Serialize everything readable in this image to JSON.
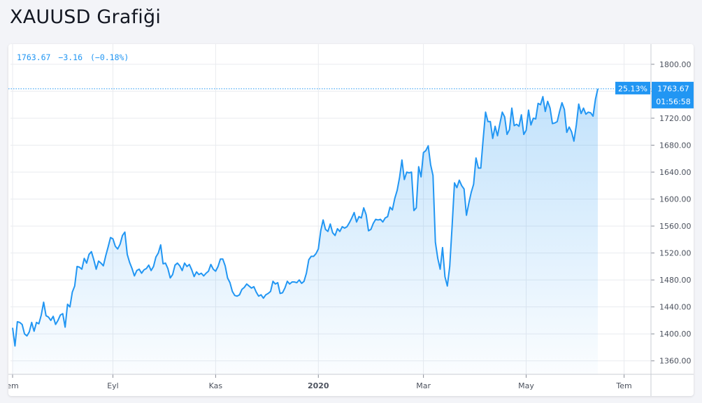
{
  "page": {
    "title": "XAUUSD Grafiği"
  },
  "legend": {
    "last": "1763.67",
    "change": "−3.16",
    "change_pct": "(−0.18%)"
  },
  "badges": {
    "percent": "25.13%",
    "price": "1763.67",
    "countdown": "01:56:58"
  },
  "colors": {
    "line": "#2196f3",
    "fill": "#2196f3",
    "grid": "#e9ebef",
    "axis_text": "#4c525e"
  },
  "chart_data": {
    "type": "area",
    "title": "XAUUSD Grafiği",
    "xlabel": "",
    "ylabel": "",
    "ylim": [
      1340,
      1830
    ],
    "y_ticks": [
      1360,
      1400,
      1440,
      1480,
      1520,
      1560,
      1600,
      1640,
      1680,
      1720,
      1760,
      1800
    ],
    "y_tick_labels": [
      "1360.00",
      "1400.00",
      "1440.00",
      "1480.00",
      "1520.00",
      "1560.00",
      "1600.00",
      "1640.00",
      "1680.00",
      "1720.00",
      "1760.00",
      "1800.00"
    ],
    "x_ticks": [
      {
        "label": "em",
        "index": 0,
        "bold": false
      },
      {
        "label": "Eyl",
        "index": 42,
        "bold": false
      },
      {
        "label": "Kas",
        "index": 85,
        "bold": false
      },
      {
        "label": "2020",
        "index": 128,
        "bold": true
      },
      {
        "label": "Mar",
        "index": 172,
        "bold": false
      },
      {
        "label": "May",
        "index": 215,
        "bold": false
      },
      {
        "label": "Tem",
        "index": 256,
        "bold": false
      }
    ],
    "x_total": 258,
    "grid": true,
    "last_value": 1763.67,
    "series": [
      {
        "values": [
          1409,
          1382,
          1418,
          1417,
          1414,
          1400,
          1397,
          1403,
          1417,
          1404,
          1417,
          1415,
          1428,
          1447,
          1427,
          1425,
          1420,
          1426,
          1414,
          1420,
          1428,
          1430,
          1410,
          1444,
          1440,
          1462,
          1471,
          1500,
          1499,
          1496,
          1512,
          1505,
          1518,
          1522,
          1510,
          1496,
          1508,
          1505,
          1501,
          1516,
          1529,
          1543,
          1541,
          1530,
          1526,
          1533,
          1546,
          1551,
          1518,
          1506,
          1497,
          1486,
          1494,
          1496,
          1490,
          1495,
          1497,
          1502,
          1494,
          1500,
          1514,
          1520,
          1532,
          1504,
          1505,
          1497,
          1483,
          1488,
          1502,
          1505,
          1501,
          1494,
          1505,
          1500,
          1503,
          1495,
          1485,
          1492,
          1488,
          1490,
          1486,
          1490,
          1493,
          1503,
          1496,
          1493,
          1500,
          1511,
          1511,
          1501,
          1483,
          1476,
          1463,
          1457,
          1456,
          1458,
          1466,
          1469,
          1474,
          1471,
          1468,
          1470,
          1462,
          1456,
          1458,
          1453,
          1458,
          1460,
          1463,
          1478,
          1474,
          1476,
          1460,
          1461,
          1468,
          1478,
          1474,
          1477,
          1477,
          1476,
          1480,
          1475,
          1478,
          1490,
          1510,
          1515,
          1515,
          1519,
          1526,
          1553,
          1569,
          1555,
          1552,
          1563,
          1550,
          1546,
          1556,
          1552,
          1559,
          1557,
          1559,
          1565,
          1572,
          1580,
          1566,
          1574,
          1572,
          1587,
          1577,
          1553,
          1555,
          1564,
          1570,
          1569,
          1570,
          1566,
          1572,
          1574,
          1588,
          1584,
          1601,
          1613,
          1632,
          1658,
          1629,
          1640,
          1639,
          1640,
          1583,
          1587,
          1648,
          1633,
          1669,
          1672,
          1679,
          1651,
          1635,
          1536,
          1512,
          1496,
          1528,
          1485,
          1471,
          1500,
          1560,
          1624,
          1617,
          1628,
          1620,
          1615,
          1576,
          1594,
          1610,
          1622,
          1661,
          1646,
          1646,
          1689,
          1729,
          1715,
          1715,
          1690,
          1708,
          1694,
          1712,
          1729,
          1722,
          1696,
          1703,
          1735,
          1709,
          1711,
          1708,
          1725,
          1696,
          1702,
          1732,
          1710,
          1720,
          1719,
          1742,
          1740,
          1752,
          1730,
          1745,
          1735,
          1712,
          1713,
          1715,
          1730,
          1743,
          1733,
          1699,
          1707,
          1700,
          1686,
          1710,
          1741,
          1727,
          1735,
          1726,
          1729,
          1728,
          1723,
          1748,
          1763.67
        ]
      }
    ]
  }
}
